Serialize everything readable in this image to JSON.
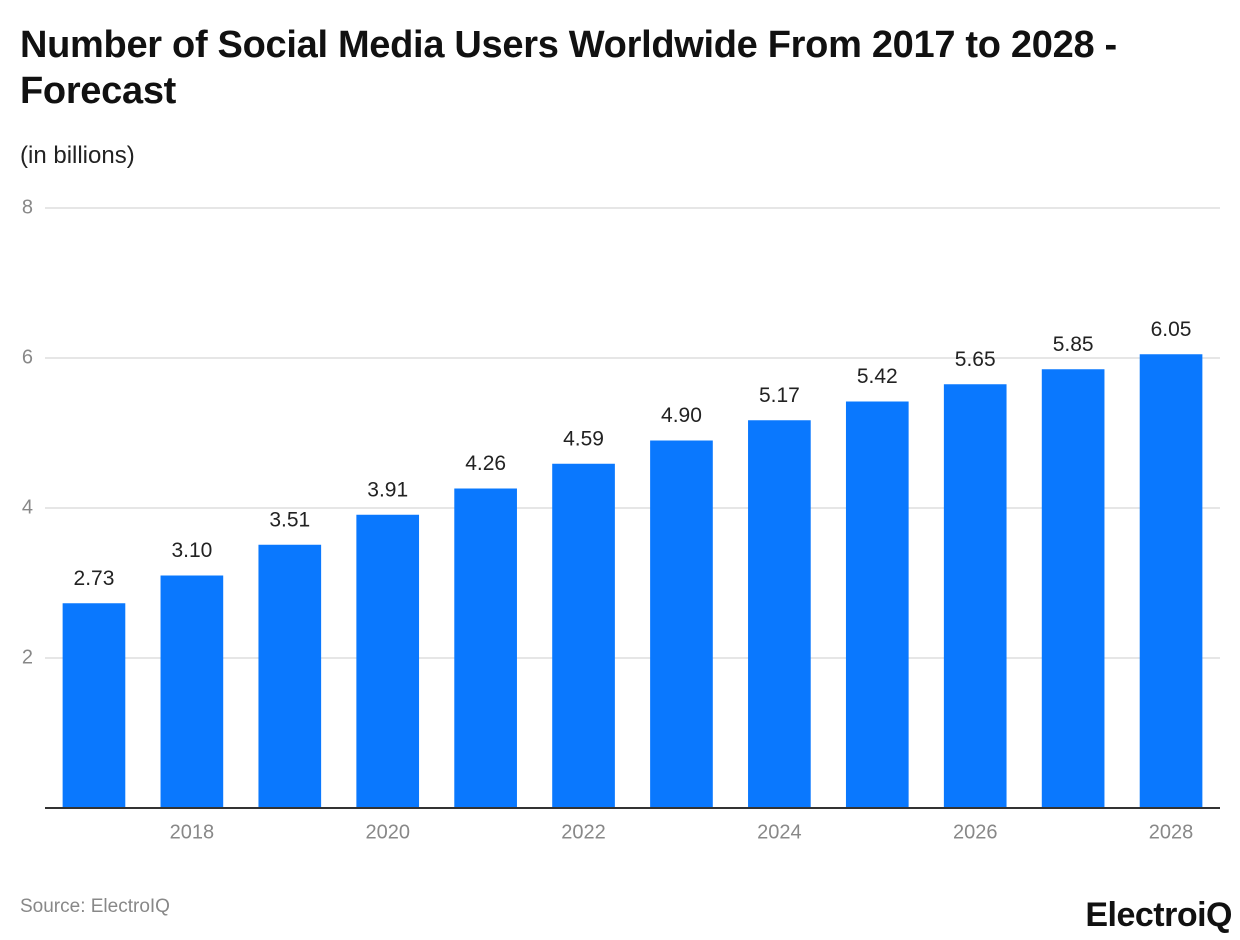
{
  "chart_data": {
    "type": "bar",
    "title": "Number of Social Media Users Worldwide From 2017 to 2028 - Forecast",
    "subtitle": "(in billions)",
    "categories": [
      null,
      "2018",
      null,
      "2020",
      null,
      "2022",
      null,
      "2024",
      null,
      "2026",
      null,
      "2028"
    ],
    "values": [
      2.73,
      3.1,
      3.51,
      3.91,
      4.26,
      4.59,
      4.9,
      5.17,
      5.42,
      5.65,
      5.85,
      6.05
    ],
    "value_labels": [
      "2.73",
      "3.10",
      "3.51",
      "3.91",
      "4.26",
      "4.59",
      "4.90",
      "5.17",
      "5.42",
      "5.65",
      "5.85",
      "6.05"
    ],
    "color": "#0a78fe",
    "ylim": [
      0,
      8
    ],
    "yticks": [
      2,
      4,
      6,
      8
    ],
    "grid": true,
    "source": "Source: ElectroIQ",
    "logo": "ElectroiQ"
  }
}
